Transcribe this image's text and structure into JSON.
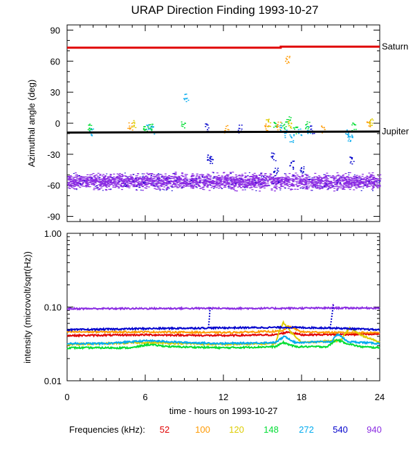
{
  "chart_data": [
    {
      "type": "scatter",
      "title": "URAP Direction Finding  1993-10-27",
      "ylabel": "Azimuthal angle (deg)",
      "ylim": [
        -95,
        95
      ],
      "xlim": [
        0,
        24
      ],
      "yticks": [
        -90,
        -60,
        -30,
        0,
        30,
        60,
        90
      ],
      "yticklabels": [
        "-90",
        "-60",
        "-30",
        "0",
        "30",
        "60",
        "90"
      ],
      "reference_lines": [
        {
          "name": "Saturn",
          "color": "#e00000",
          "values": [
            {
              "x": 0,
              "y": 73
            },
            {
              "x": 16.4,
              "y": 73
            },
            {
              "x": 16.4,
              "y": 74
            },
            {
              "x": 24,
              "y": 74
            }
          ]
        },
        {
          "name": "Jupiter",
          "color": "#000000",
          "values": [
            {
              "x": 0,
              "y": -9
            },
            {
              "x": 24,
              "y": -8
            }
          ]
        }
      ],
      "series": [
        {
          "color": "#8a2be2",
          "band": {
            "center": -56,
            "spread": 7,
            "x": [
              0,
              24
            ]
          }
        },
        {
          "color": "#0000cc",
          "points": [
            [
              10.9,
              -33
            ],
            [
              11.0,
              -37
            ],
            [
              15.8,
              -32
            ],
            [
              16.0,
              -45
            ],
            [
              17.2,
              -40
            ],
            [
              18.0,
              -44
            ],
            [
              21.8,
              -36
            ],
            [
              10.7,
              -4
            ],
            [
              13.2,
              -5
            ],
            [
              18.8,
              -6
            ]
          ]
        },
        {
          "color": "#00aaee",
          "points": [
            [
              1.8,
              -8
            ],
            [
              6.2,
              -3
            ],
            [
              6.5,
              -6
            ],
            [
              9.1,
              25
            ],
            [
              16.3,
              -4
            ],
            [
              16.8,
              -10
            ],
            [
              17.2,
              -14
            ],
            [
              17.8,
              -8
            ],
            [
              18.5,
              -6
            ],
            [
              21.5,
              -10
            ],
            [
              21.7,
              -14
            ]
          ]
        },
        {
          "color": "#00dd33",
          "points": [
            [
              1.7,
              -3
            ],
            [
              6.0,
              -5
            ],
            [
              6.4,
              -4
            ],
            [
              8.9,
              -1
            ],
            [
              16.0,
              0
            ],
            [
              16.6,
              -2
            ],
            [
              17.0,
              3
            ],
            [
              17.5,
              -6
            ],
            [
              18.4,
              -1
            ],
            [
              22.0,
              -3
            ]
          ]
        },
        {
          "color": "#ff9900",
          "points": [
            [
              4.8,
              -3
            ],
            [
              12.2,
              -5
            ],
            [
              15.3,
              -4
            ],
            [
              16.2,
              -2
            ],
            [
              16.9,
              62
            ],
            [
              19.6,
              -5
            ],
            [
              23.1,
              -1
            ]
          ]
        },
        {
          "color": "#ddcc00",
          "points": [
            [
              5.1,
              0
            ],
            [
              15.4,
              1
            ],
            [
              17.1,
              -1
            ],
            [
              23.3,
              2
            ]
          ]
        }
      ]
    },
    {
      "type": "line",
      "ylabel": "intensity (microvolt/sqrt(Hz))",
      "xlabel": "time - hours on 1993-10-27",
      "yscale": "log",
      "ylim": [
        0.01,
        1.0
      ],
      "xlim": [
        0,
        24
      ],
      "yticks": [
        0.01,
        0.1,
        1.0
      ],
      "yticklabels": [
        "0.01",
        "0.10",
        "1.00"
      ],
      "xticks": [
        0,
        6,
        12,
        18,
        24
      ],
      "xticklabels": [
        "0",
        "6",
        "12",
        "18",
        "24"
      ],
      "series": [
        {
          "color": "#e00000",
          "values": [
            [
              0,
              0.041
            ],
            [
              6,
              0.042
            ],
            [
              12,
              0.041
            ],
            [
              16,
              0.042
            ],
            [
              17,
              0.046
            ],
            [
              18,
              0.042
            ],
            [
              24,
              0.043
            ]
          ]
        },
        {
          "color": "#ff9900",
          "values": [
            [
              0,
              0.046
            ],
            [
              6,
              0.046
            ],
            [
              12,
              0.045
            ],
            [
              16.5,
              0.047
            ],
            [
              17,
              0.055
            ],
            [
              18,
              0.046
            ],
            [
              21,
              0.045
            ],
            [
              24,
              0.045
            ]
          ]
        },
        {
          "color": "#ddcc00",
          "values": [
            [
              0,
              0.031
            ],
            [
              6,
              0.033
            ],
            [
              12,
              0.031
            ],
            [
              16,
              0.032
            ],
            [
              16.6,
              0.062
            ],
            [
              17.2,
              0.045
            ],
            [
              18,
              0.033
            ],
            [
              21,
              0.035
            ],
            [
              21.7,
              0.052
            ],
            [
              22.5,
              0.042
            ],
            [
              24,
              0.033
            ]
          ]
        },
        {
          "color": "#00dd33",
          "values": [
            [
              0,
              0.028
            ],
            [
              5,
              0.028
            ],
            [
              6.2,
              0.031
            ],
            [
              8,
              0.029
            ],
            [
              12,
              0.028
            ],
            [
              16,
              0.029
            ],
            [
              16.6,
              0.033
            ],
            [
              17.5,
              0.029
            ],
            [
              20,
              0.029
            ],
            [
              20.7,
              0.036
            ],
            [
              21.5,
              0.032
            ],
            [
              22.5,
              0.029
            ],
            [
              24,
              0.028
            ]
          ]
        },
        {
          "color": "#00aaee",
          "values": [
            [
              0,
              0.032
            ],
            [
              3,
              0.032
            ],
            [
              6.2,
              0.035
            ],
            [
              9,
              0.033
            ],
            [
              12,
              0.032
            ],
            [
              16,
              0.033
            ],
            [
              16.7,
              0.04
            ],
            [
              17.5,
              0.033
            ],
            [
              20.3,
              0.034
            ],
            [
              20.8,
              0.043
            ],
            [
              21.5,
              0.034
            ],
            [
              24,
              0.032
            ]
          ]
        },
        {
          "color": "#0000cc",
          "values": [
            [
              0,
              0.049
            ],
            [
              6,
              0.051
            ],
            [
              10.7,
              0.052
            ],
            [
              16.7,
              0.053
            ],
            [
              20.3,
              0.052
            ],
            [
              21.5,
              0.051
            ],
            [
              24,
              0.049
            ]
          ]
        },
        {
          "color": "#8a2be2",
          "values": [
            [
              0,
              0.095
            ],
            [
              10.8,
              0.096
            ],
            [
              16,
              0.096
            ],
            [
              20.3,
              0.097
            ],
            [
              24,
              0.097
            ]
          ]
        }
      ],
      "spikes": [
        {
          "color": "#0000cc",
          "values": [
            [
              10.85,
              0.052
            ],
            [
              10.92,
              0.07
            ],
            [
              10.98,
              0.1
            ]
          ]
        },
        {
          "color": "#0000cc",
          "values": [
            [
              20.2,
              0.052
            ],
            [
              20.3,
              0.07
            ],
            [
              20.45,
              0.11
            ]
          ]
        },
        {
          "color": "#8a2be2",
          "values": [
            [
              10.9,
              0.096
            ],
            [
              10.95,
              0.1
            ]
          ]
        },
        {
          "color": "#8a2be2",
          "values": [
            [
              20.35,
              0.097
            ],
            [
              20.45,
              0.115
            ]
          ]
        }
      ]
    }
  ],
  "legend": {
    "label": "Frequencies (kHz):",
    "items": [
      {
        "name": "52",
        "color": "#e00000"
      },
      {
        "name": "100",
        "color": "#ff9900"
      },
      {
        "name": "120",
        "color": "#ddcc00"
      },
      {
        "name": "148",
        "color": "#00dd33"
      },
      {
        "name": "272",
        "color": "#00aaee"
      },
      {
        "name": "540",
        "color": "#0000cc"
      },
      {
        "name": "940",
        "color": "#8a2be2"
      }
    ]
  }
}
